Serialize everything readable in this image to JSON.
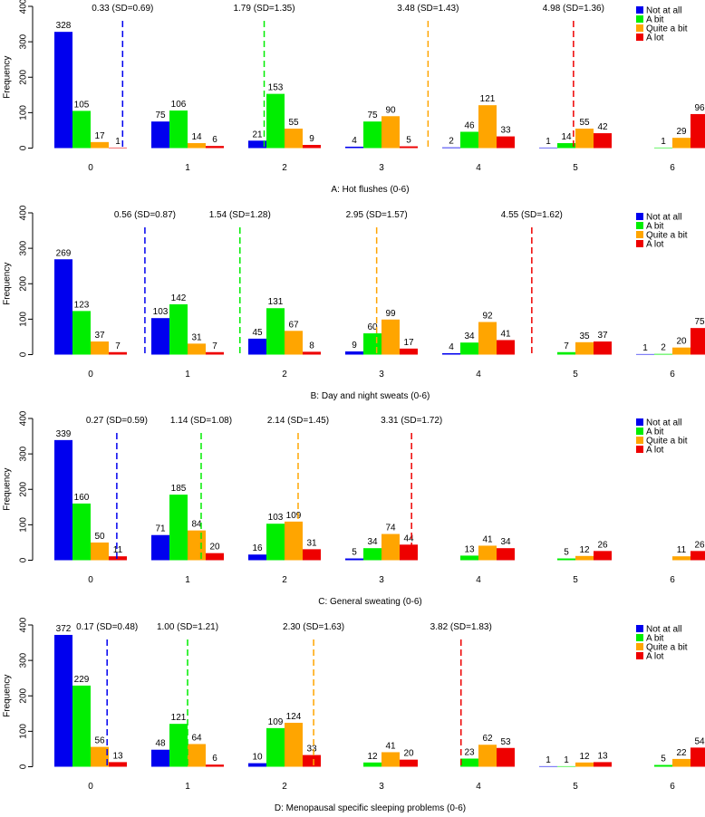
{
  "colors": {
    "Not at all": "#0000ee",
    "A bit": "#00ee00",
    "Quite a bit": "#ffa500",
    "A lot": "#ee0000",
    "axis": "#000000"
  },
  "legend_labels": [
    "Not at all",
    "A bit",
    "Quite a bit",
    "A lot"
  ],
  "chart_data": [
    {
      "type": "bar",
      "title": "A: Hot flushes (0-6)",
      "ylabel": "Frequency",
      "xlabel": "",
      "ylim": [
        0,
        400
      ],
      "yticks": [
        "0",
        "100",
        "200",
        "300",
        "400"
      ],
      "categories": [
        "0",
        "1",
        "2",
        "3",
        "4",
        "5",
        "6"
      ],
      "series": [
        {
          "name": "Not at all",
          "values": [
            328,
            75,
            21,
            4,
            2,
            1,
            0
          ]
        },
        {
          "name": "A bit",
          "values": [
            105,
            106,
            153,
            75,
            46,
            14,
            1
          ]
        },
        {
          "name": "Quite a bit",
          "values": [
            17,
            14,
            55,
            90,
            121,
            55,
            29
          ]
        },
        {
          "name": "A lot",
          "values": [
            1,
            6,
            9,
            5,
            33,
            42,
            96
          ]
        }
      ],
      "labels": [
        [
          "328",
          "75",
          "21",
          "4",
          "2",
          "1",
          ""
        ],
        [
          "105",
          "106",
          "153",
          "75",
          "46",
          "14",
          "1"
        ],
        [
          "17",
          "14",
          "55",
          "90",
          "121",
          "55",
          "29"
        ],
        [
          "1",
          "6",
          "9",
          "5",
          "33",
          "42",
          "96"
        ]
      ],
      "means": [
        {
          "series": "Not at all",
          "value": 0.33,
          "label": "0.33 (SD=0.69)"
        },
        {
          "series": "A bit",
          "value": 1.79,
          "label": "1.79 (SD=1.35)"
        },
        {
          "series": "Quite a bit",
          "value": 3.48,
          "label": "3.48 (SD=1.43)"
        },
        {
          "series": "A lot",
          "value": 4.98,
          "label": "4.98 (SD=1.36)"
        }
      ]
    },
    {
      "type": "bar",
      "title": "B: Day and night sweats (0-6)",
      "ylabel": "Frequency",
      "xlabel": "",
      "ylim": [
        0,
        400
      ],
      "yticks": [
        "0",
        "100",
        "200",
        "300",
        "400"
      ],
      "categories": [
        "0",
        "1",
        "2",
        "3",
        "4",
        "5",
        "6"
      ],
      "series": [
        {
          "name": "Not at all",
          "values": [
            269,
            103,
            45,
            9,
            4,
            0,
            1
          ]
        },
        {
          "name": "A bit",
          "values": [
            123,
            142,
            131,
            60,
            34,
            7,
            2
          ]
        },
        {
          "name": "Quite a bit",
          "values": [
            37,
            31,
            67,
            99,
            92,
            35,
            20
          ]
        },
        {
          "name": "A lot",
          "values": [
            7,
            7,
            8,
            17,
            41,
            37,
            75
          ]
        }
      ],
      "labels": [
        [
          "269",
          "103",
          "45",
          "9",
          "4",
          "",
          "1"
        ],
        [
          "123",
          "142",
          "131",
          "60",
          "34",
          "7",
          "2"
        ],
        [
          "37",
          "31",
          "67",
          "99",
          "92",
          "35",
          "20"
        ],
        [
          "7",
          "7",
          "8",
          "17",
          "41",
          "37",
          "75"
        ]
      ],
      "means": [
        {
          "series": "Not at all",
          "value": 0.56,
          "label": "0.56 (SD=0.87)"
        },
        {
          "series": "A bit",
          "value": 1.54,
          "label": "1.54 (SD=1.28)"
        },
        {
          "series": "Quite a bit",
          "value": 2.95,
          "label": "2.95 (SD=1.57)"
        },
        {
          "series": "A lot",
          "value": 4.55,
          "label": "4.55 (SD=1.62)"
        }
      ]
    },
    {
      "type": "bar",
      "title": "C: General sweating (0-6)",
      "ylabel": "Frequency",
      "xlabel": "",
      "ylim": [
        0,
        400
      ],
      "yticks": [
        "0",
        "100",
        "200",
        "300",
        "400"
      ],
      "categories": [
        "0",
        "1",
        "2",
        "3",
        "4",
        "5",
        "6"
      ],
      "series": [
        {
          "name": "Not at all",
          "values": [
            339,
            71,
            16,
            5,
            0,
            0,
            0
          ]
        },
        {
          "name": "A bit",
          "values": [
            160,
            185,
            103,
            34,
            13,
            5,
            0
          ]
        },
        {
          "name": "Quite a bit",
          "values": [
            50,
            84,
            109,
            74,
            41,
            12,
            11
          ]
        },
        {
          "name": "A lot",
          "values": [
            11,
            20,
            31,
            44,
            34,
            26,
            26
          ]
        }
      ],
      "labels": [
        [
          "339",
          "71",
          "16",
          "5",
          "",
          "",
          ""
        ],
        [
          "160",
          "185",
          "103",
          "34",
          "13",
          "5",
          ""
        ],
        [
          "50",
          "84",
          "109",
          "74",
          "41",
          "12",
          "11"
        ],
        [
          "11",
          "20",
          "31",
          "44",
          "34",
          "26",
          "26"
        ]
      ],
      "means": [
        {
          "series": "Not at all",
          "value": 0.27,
          "label": "0.27 (SD=0.59)"
        },
        {
          "series": "A bit",
          "value": 1.14,
          "label": "1.14 (SD=1.08)"
        },
        {
          "series": "Quite a bit",
          "value": 2.14,
          "label": "2.14 (SD=1.45)"
        },
        {
          "series": "A lot",
          "value": 3.31,
          "label": "3.31 (SD=1.72)"
        }
      ]
    },
    {
      "type": "bar",
      "title": "D: Menopausal specific sleeping problems (0-6)",
      "ylabel": "Frequency",
      "xlabel": "",
      "ylim": [
        0,
        400
      ],
      "yticks": [
        "0",
        "100",
        "200",
        "300",
        "400"
      ],
      "categories": [
        "0",
        "1",
        "2",
        "3",
        "4",
        "5",
        "6"
      ],
      "series": [
        {
          "name": "Not at all",
          "values": [
            372,
            48,
            10,
            0,
            0,
            1,
            0
          ]
        },
        {
          "name": "A bit",
          "values": [
            229,
            121,
            109,
            12,
            23,
            1,
            5
          ]
        },
        {
          "name": "Quite a bit",
          "values": [
            56,
            64,
            124,
            41,
            62,
            12,
            22
          ]
        },
        {
          "name": "A lot",
          "values": [
            13,
            6,
            33,
            20,
            53,
            13,
            54
          ]
        }
      ],
      "labels": [
        [
          "372",
          "48",
          "10",
          "",
          "",
          "1",
          ""
        ],
        [
          "229",
          "121",
          "109",
          "12",
          "23",
          "1",
          "5"
        ],
        [
          "56",
          "64",
          "124",
          "41",
          "62",
          "12",
          "22"
        ],
        [
          "13",
          "6",
          "33",
          "20",
          "53",
          "13",
          "54"
        ]
      ],
      "means": [
        {
          "series": "Not at all",
          "value": 0.17,
          "label": "0.17 (SD=0.48)"
        },
        {
          "series": "A bit",
          "value": 1.0,
          "label": "1.00 (SD=1.21)"
        },
        {
          "series": "Quite a bit",
          "value": 2.3,
          "label": "2.30 (SD=1.63)"
        },
        {
          "series": "A lot",
          "value": 3.82,
          "label": "3.82 (SD=1.83)"
        }
      ]
    }
  ]
}
